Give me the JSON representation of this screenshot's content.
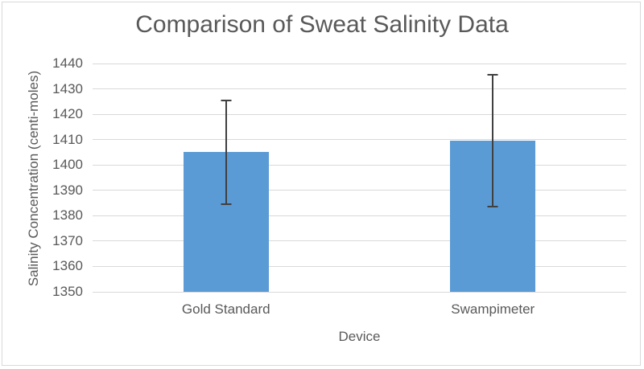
{
  "chart_data": {
    "type": "bar",
    "title": "Comparison of Sweat Salinity Data",
    "xlabel": "Device",
    "ylabel": "Salinity Concentration (centi-moles)",
    "categories": [
      "Gold Standard",
      "Swampimeter"
    ],
    "values": [
      1405,
      1409.5
    ],
    "error_plus": [
      20.5,
      26
    ],
    "error_minus": [
      20.5,
      26
    ],
    "ylim": [
      1350,
      1440
    ],
    "ytick_step": 10,
    "ytick_labels": [
      "1350",
      "1360",
      "1370",
      "1380",
      "1390",
      "1400",
      "1410",
      "1420",
      "1430",
      "1440"
    ],
    "grid": true,
    "legend": false,
    "bar_color": "#5B9BD5",
    "error_bar_color": "#404040",
    "gridline_color": "#D9D9D9",
    "axis_line_color": "#D9D9D9",
    "text_color": "#595959",
    "border_color": "#D9D9D9",
    "background_color": "#FFFFFF"
  }
}
